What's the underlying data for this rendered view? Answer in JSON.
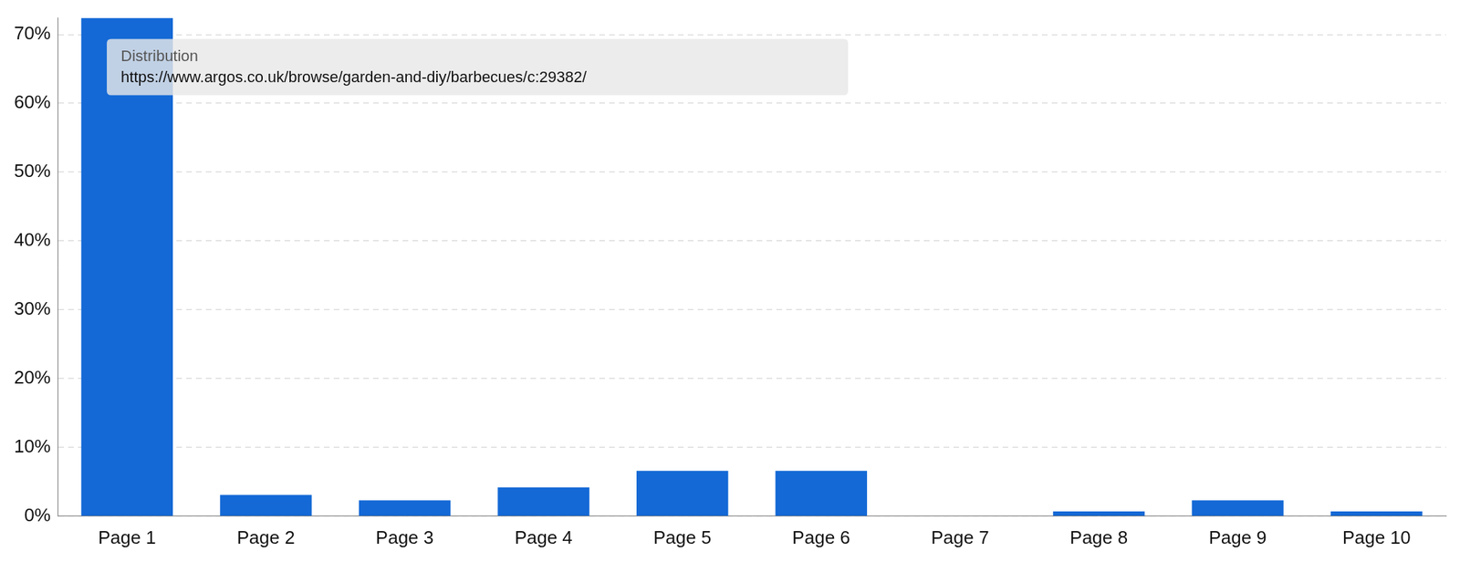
{
  "chart_data": {
    "type": "bar",
    "title": "Distribution",
    "subtitle": "https://www.argos.co.uk/browse/garden-and-diy/barbecues/c:29382/",
    "categories": [
      "Page 1",
      "Page 2",
      "Page 3",
      "Page 4",
      "Page 5",
      "Page 6",
      "Page 7",
      "Page 8",
      "Page 9",
      "Page 10"
    ],
    "values": [
      72.4,
      3.1,
      2.3,
      4.2,
      6.6,
      6.6,
      0,
      0.7,
      2.3,
      0.7
    ],
    "color": "#1469d6",
    "ylim": [
      0,
      72.4
    ],
    "yticks": [
      {
        "value": 0,
        "label": "0%"
      },
      {
        "value": 10,
        "label": "10%"
      },
      {
        "value": 20,
        "label": "20%"
      },
      {
        "value": 30,
        "label": "30%"
      },
      {
        "value": 40,
        "label": "40%"
      },
      {
        "value": 50,
        "label": "50%"
      },
      {
        "value": 60,
        "label": "60%"
      },
      {
        "value": 70,
        "label": "70%"
      }
    ],
    "grid": true
  }
}
